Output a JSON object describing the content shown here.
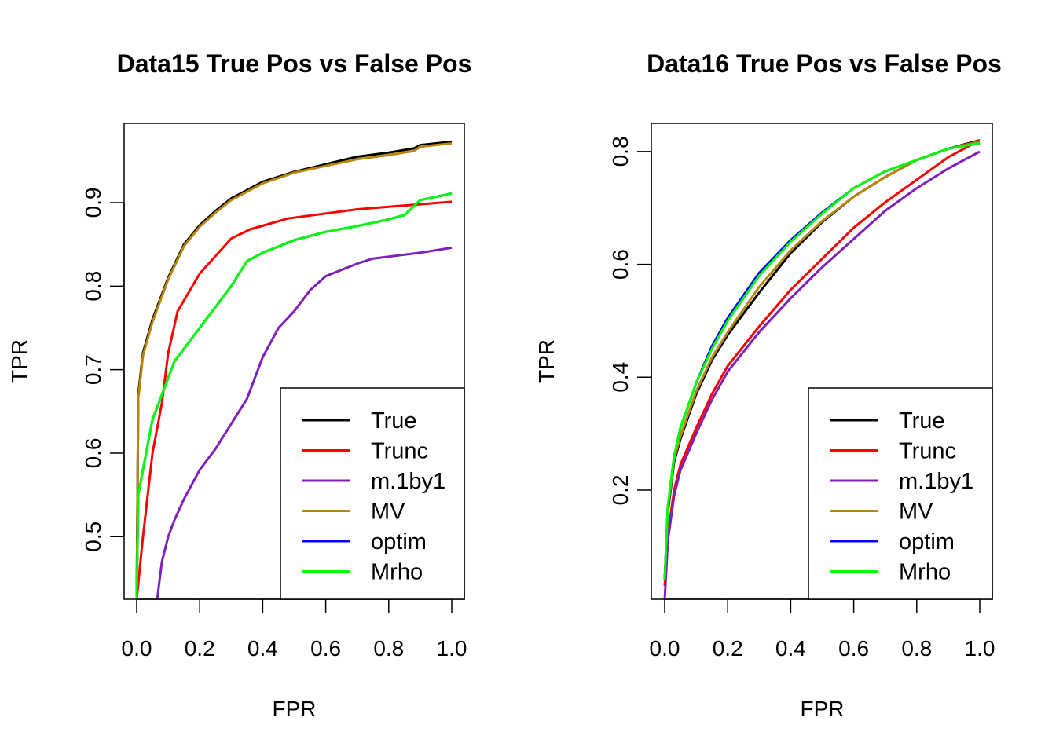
{
  "chart_data": [
    {
      "type": "line",
      "title": "Data15 True Pos vs False Pos",
      "xlabel": "FPR",
      "ylabel": "TPR",
      "xlim": [
        0,
        1
      ],
      "ylim": [
        0.425,
        0.995
      ],
      "xticks": [
        "0.0",
        "0.2",
        "0.4",
        "0.6",
        "0.8",
        "1.0"
      ],
      "yticks": [
        "0.5",
        "0.6",
        "0.7",
        "0.8",
        "0.9"
      ],
      "legend_position": "bottom-right",
      "series": [
        {
          "name": "True",
          "color": "#000000",
          "x": [
            0,
            0.005,
            0.02,
            0.05,
            0.1,
            0.15,
            0.2,
            0.25,
            0.3,
            0.4,
            0.5,
            0.6,
            0.7,
            0.8,
            0.88,
            0.9,
            1
          ],
          "y": [
            0.425,
            0.67,
            0.72,
            0.76,
            0.81,
            0.85,
            0.873,
            0.89,
            0.905,
            0.925,
            0.937,
            0.946,
            0.955,
            0.96,
            0.965,
            0.969,
            0.973
          ]
        },
        {
          "name": "Trunc",
          "color": "#ff0000",
          "x": [
            0,
            0.02,
            0.05,
            0.08,
            0.1,
            0.13,
            0.2,
            0.3,
            0.36,
            0.48,
            0.6,
            0.7,
            0.8,
            0.9,
            1
          ],
          "y": [
            0.425,
            0.5,
            0.6,
            0.66,
            0.72,
            0.77,
            0.815,
            0.857,
            0.868,
            0.881,
            0.887,
            0.892,
            0.895,
            0.898,
            0.901
          ]
        },
        {
          "name": "m.1by1",
          "color": "#7f1fbf",
          "x": [
            0.065,
            0.08,
            0.1,
            0.12,
            0.15,
            0.2,
            0.25,
            0.3,
            0.35,
            0.4,
            0.45,
            0.5,
            0.55,
            0.6,
            0.7,
            0.75,
            0.9,
            1
          ],
          "y": [
            0.425,
            0.47,
            0.5,
            0.52,
            0.545,
            0.58,
            0.605,
            0.635,
            0.665,
            0.715,
            0.75,
            0.77,
            0.795,
            0.812,
            0.827,
            0.833,
            0.84,
            0.846
          ]
        },
        {
          "name": "MV",
          "color": "#b8860b",
          "x": [
            0,
            0.005,
            0.02,
            0.05,
            0.1,
            0.15,
            0.2,
            0.25,
            0.3,
            0.4,
            0.5,
            0.6,
            0.7,
            0.8,
            0.88,
            0.9,
            1
          ],
          "y": [
            0.425,
            0.665,
            0.717,
            0.757,
            0.808,
            0.848,
            0.871,
            0.888,
            0.903,
            0.923,
            0.936,
            0.944,
            0.952,
            0.957,
            0.962,
            0.967,
            0.971
          ]
        },
        {
          "name": "optim",
          "color": "#0000ff",
          "x": [
            0,
            0.005,
            0.03,
            0.05,
            0.08,
            0.12,
            0.2,
            0.3,
            0.35,
            0.4,
            0.5,
            0.6,
            0.7,
            0.8,
            0.85,
            0.9,
            1
          ],
          "y": [
            0.425,
            0.55,
            0.6,
            0.64,
            0.67,
            0.71,
            0.75,
            0.8,
            0.83,
            0.84,
            0.855,
            0.865,
            0.872,
            0.88,
            0.885,
            0.903,
            0.911
          ]
        },
        {
          "name": "Mrho",
          "color": "#00ff00",
          "x": [
            0,
            0.005,
            0.03,
            0.05,
            0.08,
            0.12,
            0.2,
            0.3,
            0.35,
            0.4,
            0.5,
            0.6,
            0.7,
            0.8,
            0.85,
            0.9,
            1
          ],
          "y": [
            0.425,
            0.55,
            0.6,
            0.64,
            0.67,
            0.71,
            0.75,
            0.8,
            0.83,
            0.84,
            0.855,
            0.865,
            0.872,
            0.88,
            0.885,
            0.903,
            0.911
          ]
        }
      ]
    },
    {
      "type": "line",
      "title": "Data16 True Pos vs False Pos",
      "xlabel": "FPR",
      "ylabel": "TPR",
      "xlim": [
        0,
        1
      ],
      "ylim": [
        0.0065,
        0.85
      ],
      "xticks": [
        "0.0",
        "0.2",
        "0.4",
        "0.6",
        "0.8",
        "1.0"
      ],
      "yticks": [
        "0.2",
        "0.4",
        "0.6",
        "0.8"
      ],
      "legend_position": "bottom-right",
      "series": [
        {
          "name": "True",
          "color": "#000000",
          "x": [
            0,
            0.01,
            0.03,
            0.05,
            0.1,
            0.15,
            0.2,
            0.3,
            0.4,
            0.5,
            0.6,
            0.7,
            0.8,
            0.9,
            1
          ],
          "y": [
            0.04,
            0.16,
            0.25,
            0.29,
            0.37,
            0.43,
            0.475,
            0.55,
            0.62,
            0.675,
            0.72,
            0.755,
            0.785,
            0.805,
            0.82
          ]
        },
        {
          "name": "Trunc",
          "color": "#ff0000",
          "x": [
            0,
            0.01,
            0.03,
            0.05,
            0.1,
            0.15,
            0.2,
            0.3,
            0.4,
            0.5,
            0.6,
            0.7,
            0.8,
            0.9,
            1
          ],
          "y": [
            0.03,
            0.12,
            0.2,
            0.245,
            0.31,
            0.37,
            0.42,
            0.49,
            0.555,
            0.61,
            0.665,
            0.71,
            0.75,
            0.79,
            0.82
          ]
        },
        {
          "name": "m.1by1",
          "color": "#7f1fbf",
          "x": [
            0,
            0.01,
            0.03,
            0.05,
            0.1,
            0.15,
            0.2,
            0.3,
            0.4,
            0.5,
            0.6,
            0.7,
            0.8,
            0.9,
            1
          ],
          "y": [
            0.005,
            0.11,
            0.19,
            0.235,
            0.3,
            0.36,
            0.41,
            0.48,
            0.54,
            0.595,
            0.645,
            0.695,
            0.735,
            0.77,
            0.8
          ]
        },
        {
          "name": "MV",
          "color": "#b8860b",
          "x": [
            0,
            0.01,
            0.03,
            0.05,
            0.1,
            0.15,
            0.2,
            0.3,
            0.4,
            0.5,
            0.6,
            0.7,
            0.8,
            0.9,
            1
          ],
          "y": [
            0.04,
            0.165,
            0.255,
            0.295,
            0.375,
            0.435,
            0.48,
            0.56,
            0.625,
            0.677,
            0.72,
            0.755,
            0.785,
            0.805,
            0.818
          ]
        },
        {
          "name": "optim",
          "color": "#0000ff",
          "x": [
            0,
            0.01,
            0.03,
            0.05,
            0.1,
            0.15,
            0.2,
            0.3,
            0.4,
            0.5,
            0.6,
            0.7,
            0.8,
            0.9,
            1
          ],
          "y": [
            0.04,
            0.17,
            0.26,
            0.31,
            0.39,
            0.455,
            0.505,
            0.585,
            0.643,
            0.692,
            0.735,
            0.765,
            0.785,
            0.805,
            0.815
          ]
        },
        {
          "name": "Mrho",
          "color": "#00ff00",
          "x": [
            0,
            0.01,
            0.03,
            0.05,
            0.1,
            0.15,
            0.2,
            0.3,
            0.4,
            0.5,
            0.6,
            0.7,
            0.8,
            0.9,
            1
          ],
          "y": [
            0.04,
            0.17,
            0.26,
            0.31,
            0.39,
            0.45,
            0.5,
            0.58,
            0.64,
            0.69,
            0.735,
            0.765,
            0.785,
            0.805,
            0.815
          ]
        }
      ]
    }
  ]
}
